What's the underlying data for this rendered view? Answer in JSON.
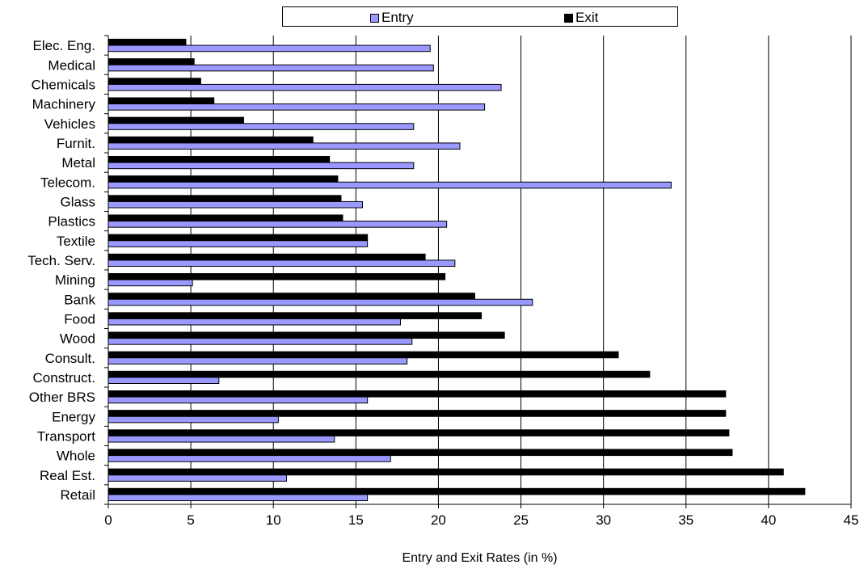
{
  "chart_data": {
    "type": "bar",
    "orientation": "horizontal",
    "categories": [
      "Elec. Eng.",
      "Medical",
      "Chemicals",
      "Machinery",
      "Vehicles",
      "Furnit.",
      "Metal",
      "Telecom.",
      "Glass",
      "Plastics",
      "Textile",
      "Tech. Serv.",
      "Mining",
      "Bank",
      "Food",
      "Wood",
      "Consult.",
      "Construct.",
      "Other BRS",
      "Energy",
      "Transport",
      "Whole",
      "Real Est.",
      "Retail"
    ],
    "series": [
      {
        "name": "Entry",
        "color": "#9999ff",
        "values": [
          19.5,
          19.7,
          23.8,
          22.8,
          18.5,
          21.3,
          18.5,
          34.1,
          15.4,
          20.5,
          15.7,
          21.0,
          5.1,
          25.7,
          17.7,
          18.4,
          18.1,
          6.7,
          15.7,
          10.3,
          13.7,
          17.1,
          10.8,
          15.7
        ]
      },
      {
        "name": "Exit",
        "color": "#000000",
        "values": [
          4.7,
          5.2,
          5.6,
          6.4,
          8.2,
          12.4,
          13.4,
          13.9,
          14.1,
          14.2,
          15.7,
          19.2,
          20.4,
          22.2,
          22.6,
          24.0,
          30.9,
          32.8,
          37.4,
          37.4,
          37.6,
          37.8,
          40.9,
          42.2
        ]
      }
    ],
    "xlabel": "Entry and Exit Rates (in %)",
    "ylabel": "",
    "title": "",
    "xlim": [
      0,
      45
    ],
    "xticks": [
      0,
      5,
      10,
      15,
      20,
      25,
      30,
      35,
      40,
      45
    ],
    "grid": "vertical",
    "legend_position": "top"
  },
  "legend": {
    "entry_label": "Entry",
    "exit_label": "Exit"
  }
}
